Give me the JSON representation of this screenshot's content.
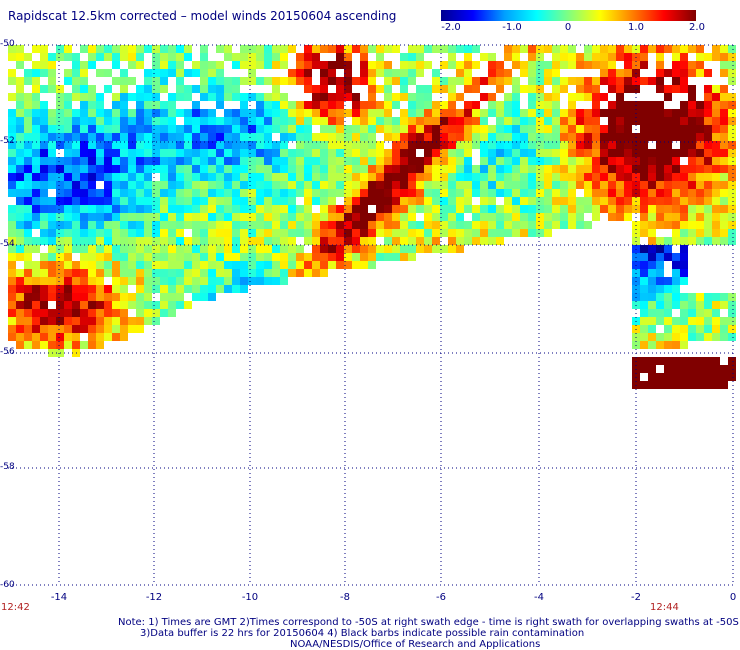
{
  "title": "Rapidscat 12.5km corrected – model winds 20150604 ascending",
  "colorbar": {
    "labels": [
      "-2.0",
      "-1.0",
      "0",
      "1.0",
      "2.0"
    ],
    "colors": [
      "#000090",
      "#0000ff",
      "#00a0ff",
      "#00ffff",
      "#80ff80",
      "#ffff00",
      "#ff8000",
      "#ff0000",
      "#800000"
    ]
  },
  "axes": {
    "y_ticks": [
      "-50",
      "-52",
      "-54",
      "-56",
      "-58",
      "-60"
    ],
    "x_ticks": [
      "-14",
      "-12",
      "-10",
      "-8",
      "-6",
      "-4",
      "-2",
      "0"
    ],
    "xlim": [
      -15,
      0
    ],
    "ylim": [
      -60,
      -50
    ]
  },
  "times": {
    "left": "12:42",
    "right": "12:44"
  },
  "notes": [
    "Note: 1) Times are GMT 2)Times correspond to -50S at right swath edge - time is right swath for overlapping swaths at -50S",
    "3)Data buffer is 22 hrs for 20150604 4) Black barbs indicate possible rain contamination",
    "NOAA/NESDIS/Office of Research and Applications"
  ]
}
